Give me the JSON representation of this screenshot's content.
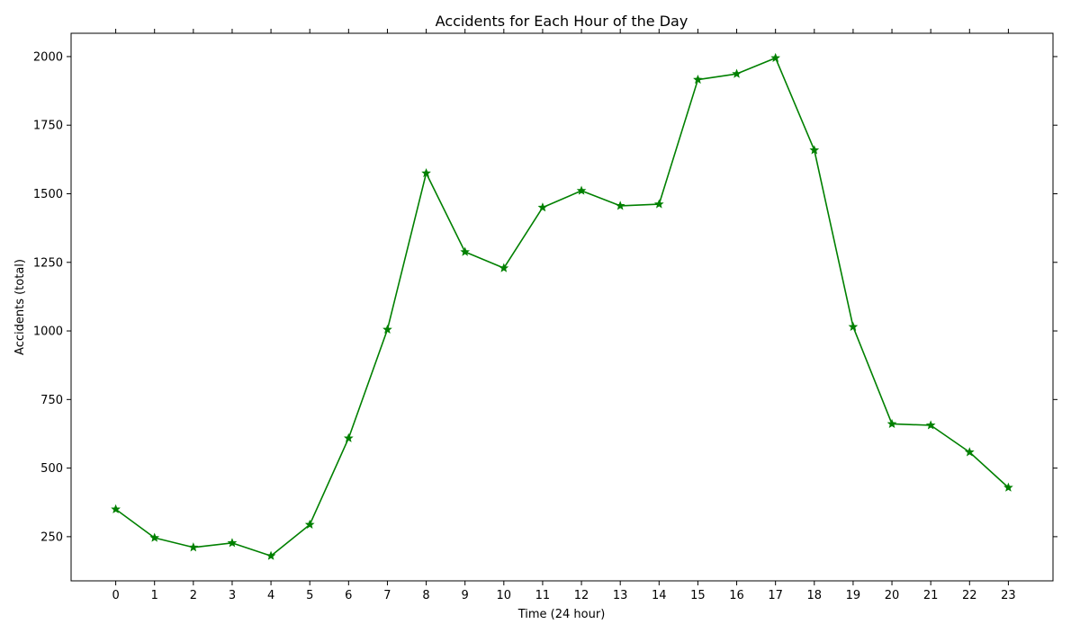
{
  "chart_data": {
    "type": "line",
    "title": "Accidents for Each Hour of the Day",
    "xlabel": "Time (24 hour)",
    "ylabel": "Accidents (total)",
    "x": [
      0,
      1,
      2,
      3,
      4,
      5,
      6,
      7,
      8,
      9,
      10,
      11,
      12,
      13,
      14,
      15,
      16,
      17,
      18,
      19,
      20,
      21,
      22,
      23
    ],
    "x_tick_labels": [
      "0",
      "1",
      "2",
      "3",
      "4",
      "5",
      "6",
      "7",
      "8",
      "9",
      "10",
      "11",
      "12",
      "13",
      "14",
      "15",
      "16",
      "17",
      "18",
      "19",
      "20",
      "21",
      "22",
      "23"
    ],
    "series": [
      {
        "values": [
          350,
          246,
          211,
          227,
          180,
          294,
          609,
          1005,
          1575,
          1288,
          1229,
          1450,
          1511,
          1456,
          1462,
          1916,
          1937,
          1995,
          1659,
          1015,
          661,
          656,
          558,
          429
        ],
        "color": "#008000",
        "marker": "star"
      }
    ],
    "y_ticks": [
      250,
      500,
      750,
      1000,
      1250,
      1500,
      1750,
      2000
    ],
    "y_tick_labels": [
      "250",
      "500",
      "750",
      "1000",
      "1250",
      "1500",
      "1750",
      "2000"
    ],
    "xlim": [
      -1.15,
      24.15
    ],
    "ylim": [
      89,
      2085
    ],
    "grid": false,
    "legend": "none"
  }
}
